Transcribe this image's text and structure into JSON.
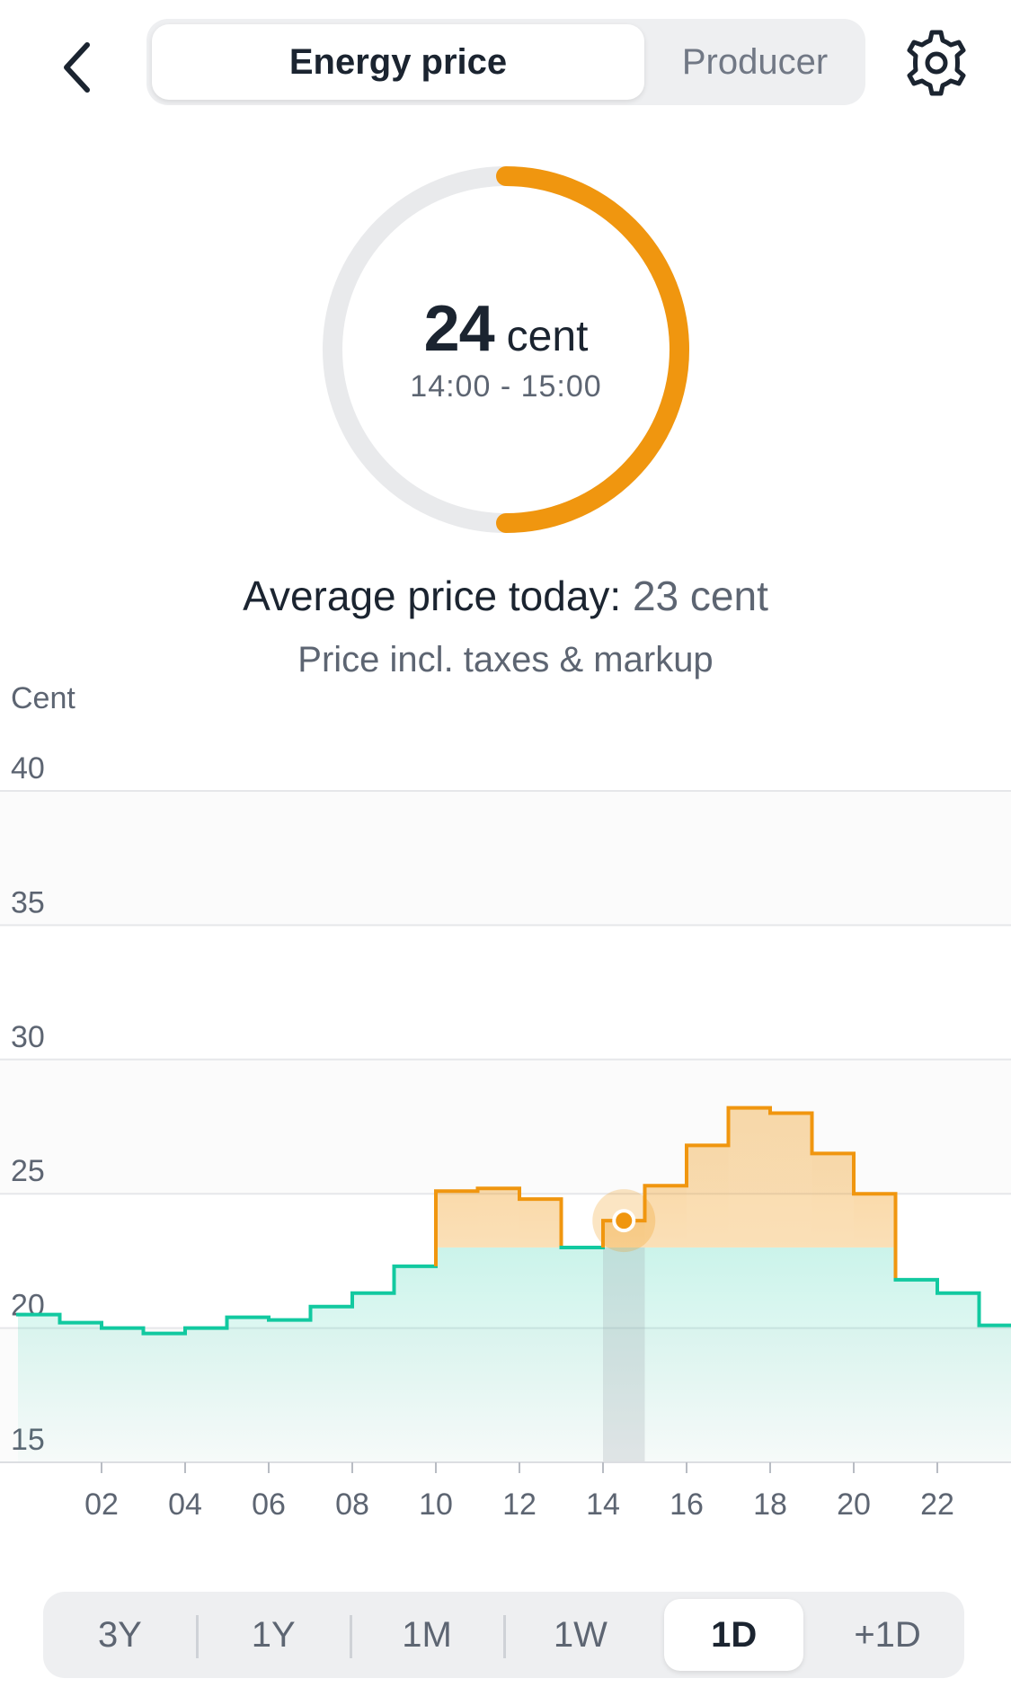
{
  "header": {
    "back_icon": "chevron-left-icon",
    "tabs": [
      {
        "label": "Energy price",
        "active": true
      },
      {
        "label": "Producer",
        "active": false
      }
    ],
    "settings_icon": "gear-icon"
  },
  "gauge": {
    "value": "24",
    "unit": "cent",
    "time_range": "14:00 - 15:00",
    "fill_fraction": 0.5
  },
  "average": {
    "label": "Average price today:",
    "value": "23 cent"
  },
  "note": "Price incl. taxes & markup",
  "colors": {
    "accent": "#f0960f",
    "green": "#12c9a0",
    "text": "#1b2430",
    "muted": "#5d6572"
  },
  "chart_data": {
    "type": "line",
    "step": true,
    "ylabel": "Cent",
    "ylim": [
      15,
      40
    ],
    "y_ticks": [
      "40",
      "35",
      "30",
      "25",
      "20",
      "15"
    ],
    "x_ticks": [
      "02",
      "04",
      "06",
      "08",
      "10",
      "12",
      "14",
      "16",
      "18",
      "20",
      "22"
    ],
    "average": 23,
    "selected_hour": 14,
    "hours": [
      0,
      1,
      2,
      3,
      4,
      5,
      6,
      7,
      8,
      9,
      10,
      11,
      12,
      13,
      14,
      15,
      16,
      17,
      18,
      19,
      20,
      21,
      22,
      23
    ],
    "values": [
      20.5,
      20.2,
      20.0,
      19.8,
      20.0,
      20.4,
      20.3,
      20.8,
      21.3,
      22.3,
      25.1,
      25.2,
      24.8,
      23.0,
      24.0,
      25.3,
      26.8,
      28.2,
      28.0,
      26.5,
      25.0,
      21.8,
      21.3,
      20.1
    ],
    "marker_value": 24,
    "grid": true
  },
  "ranges": {
    "options": [
      "3Y",
      "1Y",
      "1M",
      "1W",
      "1D",
      "+1D"
    ],
    "selected": "1D"
  }
}
